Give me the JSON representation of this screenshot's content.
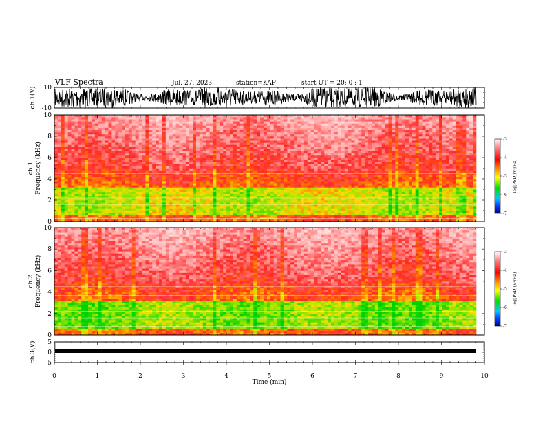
{
  "header": {
    "title": "VLF Spectra",
    "date": "Jul. 27, 2023",
    "station": "station=KAP",
    "start": "start UT = 20: 0 : 1"
  },
  "colorbar": {
    "label": "log(PSD)(V²/Hz)",
    "ticks": [
      -3,
      -4,
      -5,
      -6,
      -7
    ]
  },
  "chart_data": [
    {
      "type": "line",
      "title": "",
      "ylabel": "ch.1(V)",
      "ylim": [
        -10,
        10
      ],
      "yticks": [
        10,
        -10
      ],
      "xlim": [
        0,
        10
      ],
      "description_source": "waveform"
    },
    {
      "type": "heatmap",
      "ylabel": "ch.1 Frequency (kHz)",
      "ylim": [
        0,
        10
      ],
      "yticks": [
        0,
        2,
        4,
        6,
        8,
        10
      ],
      "xlim": [
        0,
        10
      ],
      "color_range": [
        -7,
        -3
      ]
    },
    {
      "type": "heatmap",
      "ylabel": "ch.2 Frequency (kHz)",
      "ylim": [
        0,
        10
      ],
      "yticks": [
        0,
        2,
        4,
        6,
        8,
        10
      ],
      "xlim": [
        0,
        10
      ],
      "color_range": [
        -7,
        -3
      ]
    },
    {
      "type": "line",
      "ylabel": "ch.3(V)",
      "ylim": [
        -5,
        5
      ],
      "yticks": [
        5,
        0,
        -5
      ],
      "xlim": [
        0,
        10
      ],
      "xlabel": "Time (min)",
      "xticks": [
        0,
        1,
        2,
        3,
        4,
        5,
        6,
        7,
        8,
        9,
        10
      ]
    }
  ]
}
